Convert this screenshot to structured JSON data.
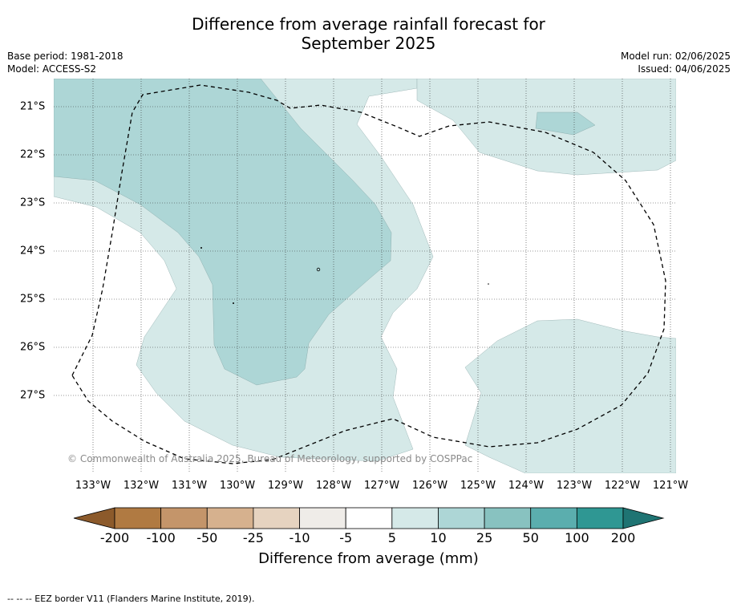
{
  "title_line1": "Difference from average rainfall forecast for",
  "title_line2": "September 2025",
  "base_period": "Base period: 1981-2018",
  "model": "Model: ACCESS-S2",
  "model_run": "Model run: 02/06/2025",
  "issued": "Issued: 04/06/2025",
  "lat_labels": [
    "21°S",
    "22°S",
    "23°S",
    "24°S",
    "25°S",
    "26°S",
    "27°S"
  ],
  "lon_labels": [
    "133°W",
    "132°W",
    "131°W",
    "130°W",
    "129°W",
    "128°W",
    "127°W",
    "126°W",
    "125°W",
    "124°W",
    "123°W",
    "122°W",
    "121°W"
  ],
  "copyright": "© Commonwealth of Australia 2025, Bureau of Meteorology, supported by COSPPac",
  "colorbar": {
    "ticks": [
      "-200",
      "-100",
      "-50",
      "-25",
      "-10",
      "-5",
      "5",
      "10",
      "25",
      "50",
      "100",
      "200"
    ],
    "colors": [
      "#8c5a2b",
      "#b07a42",
      "#c4956a",
      "#d6b18e",
      "#e6d3c0",
      "#efece8",
      "#ffffff",
      "#d5e9e8",
      "#add6d6",
      "#88c2c0",
      "#5baeae",
      "#2f9793",
      "#1f7473"
    ],
    "label": "Difference from average (mm)"
  },
  "legend_note": "-- -- -- EEZ border V11 (Flanders Marine Institute, 2019).",
  "colors": {
    "light_teal": "#d5e9e8",
    "mid_teal": "#add6d6"
  }
}
